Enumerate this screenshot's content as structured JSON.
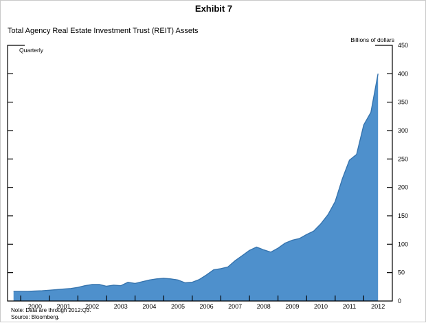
{
  "page": {
    "exhibit_label": "Exhibit 7",
    "title": "Total Agency Real Estate Investment Trust (REIT) Assets",
    "unit_label": "Billions of dollars",
    "frequency_label": "Quarterly",
    "note": "Note: Data are through 2012:Q3.",
    "source": "Source: Bloomberg."
  },
  "chart_data": {
    "type": "area",
    "title": "Total Agency Real Estate Investment Trust (REIT) Assets",
    "frequency": "Quarterly",
    "ylabel": "Billions of dollars",
    "ylim": [
      0,
      450
    ],
    "y_tick_step": 50,
    "y_ticks": [
      0,
      50,
      100,
      150,
      200,
      250,
      300,
      350,
      400,
      450
    ],
    "x_tick_years": [
      2000,
      2001,
      2002,
      2003,
      2004,
      2005,
      2006,
      2007,
      2008,
      2009,
      2010,
      2011,
      2012
    ],
    "x_start": 1999.75,
    "x_step": 0.25,
    "x_end_label": "2012:Q3",
    "grid": false,
    "legend_position": "none",
    "series": [
      {
        "name": "Total agency REIT assets (billions of dollars)",
        "values": [
          17,
          17,
          17,
          17.5,
          18,
          19,
          20,
          21,
          22,
          24,
          27,
          29,
          29,
          26,
          28,
          27,
          33,
          31,
          34,
          37,
          39,
          40,
          39,
          37,
          32,
          33,
          38,
          46,
          55,
          57,
          60,
          71,
          80,
          89,
          95,
          90,
          86,
          93,
          102,
          107,
          110,
          117,
          123,
          136,
          152,
          175,
          215,
          248,
          258,
          310,
          332,
          400
        ]
      }
    ],
    "colors": {
      "area_fill": "#4e90cc",
      "area_line": "#3674ae",
      "axis": "#000000"
    }
  }
}
